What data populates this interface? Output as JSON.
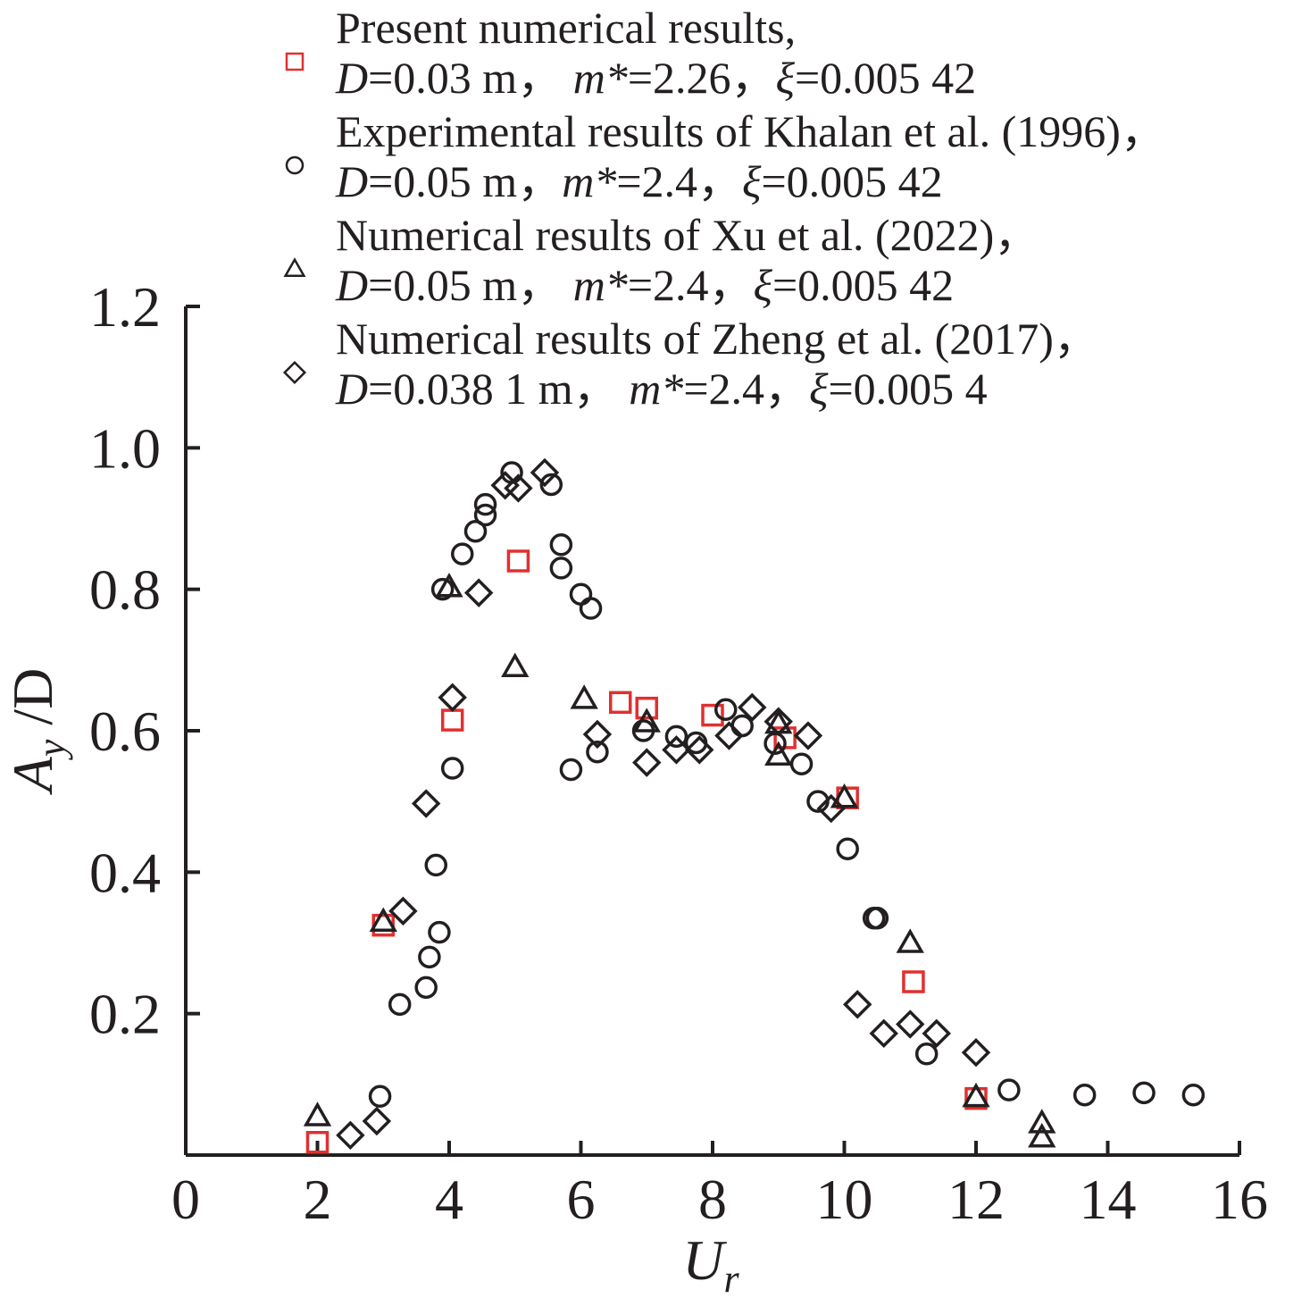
{
  "chart_data": {
    "type": "scatter",
    "title": "",
    "xlabel": "U",
    "xlabel_sub": "r",
    "ylabel": "A",
    "ylabel_sub": "y",
    "ylabel_suffix": " /D",
    "xlim": [
      0,
      16
    ],
    "ylim": [
      0,
      1.2
    ],
    "x_ticks": [
      0,
      2,
      4,
      6,
      8,
      10,
      12,
      14,
      16
    ],
    "x_tick_labels": [
      "0",
      "2",
      "4",
      "6",
      "8",
      "10",
      "12",
      "14",
      "16"
    ],
    "y_ticks": [
      0.2,
      0.4,
      0.6,
      0.8,
      1.0,
      1.2
    ],
    "y_tick_labels": [
      "0.2",
      "0.4",
      "0.6",
      "0.8",
      "1.0",
      "1.2"
    ],
    "grid": false,
    "legend_position": "top",
    "series": [
      {
        "name": "Present numerical results",
        "marker": "square",
        "color": "#e03030",
        "legend_line1": [
          {
            "t": "Present numerical results,",
            "i": false
          }
        ],
        "legend_line2": [
          {
            "t": "D",
            "i": true
          },
          {
            "t": "=0.03 m，  ",
            "i": false
          },
          {
            "t": "m*",
            "i": true
          },
          {
            "t": "=2.26，",
            "i": false
          },
          {
            "t": "ξ",
            "i": true
          },
          {
            "t": "=0.005 42",
            "i": false
          }
        ],
        "points": [
          [
            2.0,
            0.018
          ],
          [
            3.0,
            0.325
          ],
          [
            4.05,
            0.615
          ],
          [
            5.05,
            0.84
          ],
          [
            6.6,
            0.64
          ],
          [
            7.0,
            0.632
          ],
          [
            8.0,
            0.622
          ],
          [
            9.1,
            0.59
          ],
          [
            10.05,
            0.505
          ],
          [
            11.05,
            0.245
          ],
          [
            12.0,
            0.08
          ]
        ]
      },
      {
        "name": "Experimental results of Khalan et al. (1996)",
        "marker": "circle",
        "color": "#231f20",
        "legend_line1": [
          {
            "t": "Experimental results of Khalan et al. (1996)，",
            "i": false
          }
        ],
        "legend_line2": [
          {
            "t": "D",
            "i": true
          },
          {
            "t": "=0.05 m，",
            "i": false
          },
          {
            "t": "m*",
            "i": true
          },
          {
            "t": "=2.4，",
            "i": false
          },
          {
            "t": "ξ",
            "i": true
          },
          {
            "t": "=0.005 42",
            "i": false
          }
        ],
        "points": [
          [
            2.95,
            0.083
          ],
          [
            3.25,
            0.213
          ],
          [
            3.65,
            0.237
          ],
          [
            3.7,
            0.28
          ],
          [
            3.8,
            0.41
          ],
          [
            3.85,
            0.315
          ],
          [
            3.9,
            0.8
          ],
          [
            4.05,
            0.547
          ],
          [
            4.2,
            0.85
          ],
          [
            4.4,
            0.882
          ],
          [
            4.55,
            0.905
          ],
          [
            4.55,
            0.92
          ],
          [
            4.95,
            0.965
          ],
          [
            5.55,
            0.948
          ],
          [
            5.7,
            0.863
          ],
          [
            5.7,
            0.83
          ],
          [
            5.85,
            0.545
          ],
          [
            6.0,
            0.793
          ],
          [
            6.15,
            0.773
          ],
          [
            6.25,
            0.57
          ],
          [
            6.95,
            0.6
          ],
          [
            7.45,
            0.592
          ],
          [
            7.75,
            0.583
          ],
          [
            8.2,
            0.63
          ],
          [
            8.45,
            0.607
          ],
          [
            8.95,
            0.582
          ],
          [
            9.35,
            0.553
          ],
          [
            9.6,
            0.5
          ],
          [
            10.05,
            0.433
          ],
          [
            10.45,
            0.335
          ],
          [
            10.5,
            0.335
          ],
          [
            11.25,
            0.143
          ],
          [
            12.5,
            0.092
          ],
          [
            13.65,
            0.085
          ],
          [
            14.55,
            0.088
          ],
          [
            15.3,
            0.085
          ]
        ]
      },
      {
        "name": "Numerical results of Xu et al. (2022)",
        "marker": "triangle",
        "color": "#231f20",
        "legend_line1": [
          {
            "t": "Numerical results of Xu et al. (2022)，",
            "i": false
          }
        ],
        "legend_line2": [
          {
            "t": "D",
            "i": true
          },
          {
            "t": "=0.05 m，  ",
            "i": false
          },
          {
            "t": "m*",
            "i": true
          },
          {
            "t": "=2.4，",
            "i": false
          },
          {
            "t": "ξ",
            "i": true
          },
          {
            "t": "=0.005 42",
            "i": false
          }
        ],
        "points": [
          [
            2.0,
            0.055
          ],
          [
            3.0,
            0.33
          ],
          [
            4.0,
            0.803
          ],
          [
            5.0,
            0.69
          ],
          [
            6.05,
            0.645
          ],
          [
            7.0,
            0.612
          ],
          [
            9.0,
            0.61
          ],
          [
            9.0,
            0.565
          ],
          [
            10.0,
            0.505
          ],
          [
            11.0,
            0.3
          ],
          [
            12.0,
            0.082
          ],
          [
            13.0,
            0.045
          ],
          [
            13.0,
            0.025
          ]
        ]
      },
      {
        "name": "Numerical results of Zheng et al. (2017)",
        "marker": "diamond",
        "color": "#231f20",
        "legend_line1": [
          {
            "t": "Numerical results of Zheng et al. (2017)，",
            "i": false
          }
        ],
        "legend_line2": [
          {
            "t": "D",
            "i": true
          },
          {
            "t": "=0.038 1 m，  ",
            "i": false
          },
          {
            "t": "m*",
            "i": true
          },
          {
            "t": "=2.4，",
            "i": false
          },
          {
            "t": "ξ",
            "i": true
          },
          {
            "t": "=0.005 4",
            "i": false
          }
        ],
        "points": [
          [
            2.5,
            0.028
          ],
          [
            2.9,
            0.048
          ],
          [
            3.3,
            0.345
          ],
          [
            3.65,
            0.497
          ],
          [
            4.05,
            0.647
          ],
          [
            4.45,
            0.795
          ],
          [
            4.85,
            0.947
          ],
          [
            5.05,
            0.943
          ],
          [
            5.45,
            0.965
          ],
          [
            6.25,
            0.595
          ],
          [
            7.0,
            0.555
          ],
          [
            7.45,
            0.573
          ],
          [
            7.8,
            0.573
          ],
          [
            8.25,
            0.593
          ],
          [
            8.6,
            0.633
          ],
          [
            9.0,
            0.613
          ],
          [
            9.45,
            0.593
          ],
          [
            9.8,
            0.49
          ],
          [
            10.2,
            0.213
          ],
          [
            10.6,
            0.172
          ],
          [
            11.0,
            0.185
          ],
          [
            11.4,
            0.172
          ],
          [
            12.0,
            0.145
          ]
        ]
      }
    ]
  }
}
